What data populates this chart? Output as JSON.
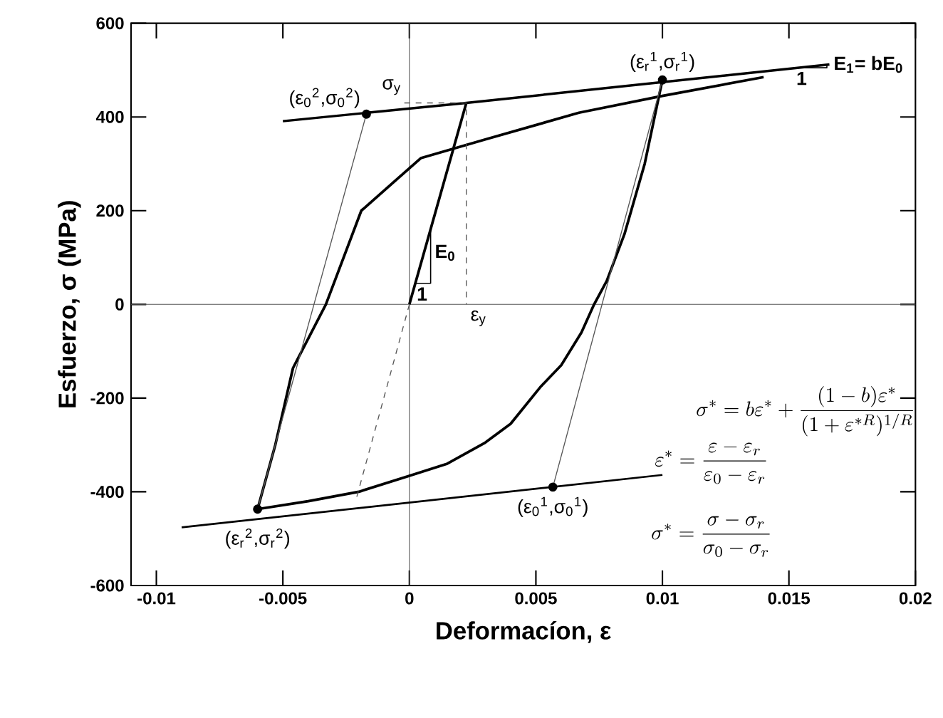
{
  "chart_data": {
    "type": "line",
    "xlabel": "Deformacíon, ε",
    "ylabel": "Esfuerzo,  σ  (MPa)",
    "xlim": [
      -0.011,
      0.02
    ],
    "ylim": [
      -600,
      600
    ],
    "xticks": [
      -0.01,
      -0.005,
      0,
      0.005,
      0.01,
      0.015,
      0.02
    ],
    "yticks": [
      -600,
      -400,
      -200,
      0,
      200,
      400,
      600
    ],
    "series": [
      {
        "color": "#555555",
        "x": [
          0,
          0
        ],
        "values": [
          -600,
          600
        ]
      },
      {
        "color": "#555555",
        "x": [
          -0.011,
          0.02
        ],
        "values": [
          0,
          0
        ]
      },
      {
        "color": "#000000",
        "x": [
          -0.005,
          0.00225,
          0.0166
        ],
        "values": [
          391,
          430,
          512
        ]
      },
      {
        "color": "#000000",
        "x": [
          0,
          0.00225
        ],
        "values": [
          0,
          430
        ]
      },
      {
        "color": "#000000",
        "x": [
          -0.006,
          -0.0053,
          -0.0046,
          -0.0033,
          -0.0019,
          0.00045,
          0.003,
          0.0067,
          0.01,
          0.014
        ],
        "values": [
          -437,
          -300,
          -136,
          0,
          200,
          312,
          352,
          409,
          445,
          485
        ]
      },
      {
        "color": "#000000",
        "x": [
          0.01,
          0.0093,
          0.0085,
          0.0078,
          0.0073,
          0.0068,
          0.006,
          0.0052,
          0.004,
          0.003,
          0.0015,
          0,
          -0.002,
          -0.004,
          -0.006
        ],
        "values": [
          479,
          300,
          150,
          50,
          0,
          -60,
          -130,
          -175,
          -255,
          -295,
          -340,
          -366,
          -400,
          -420,
          -437
        ]
      },
      {
        "color": "#000000",
        "x": [
          -0.009,
          0.01
        ],
        "values": [
          -476,
          -364
        ]
      },
      {
        "color": "#555555",
        "x": [
          0.01,
          0.00567
        ],
        "values": [
          479,
          -390
        ]
      },
      {
        "color": "#555555",
        "x": [
          -0.006,
          -0.0017
        ],
        "values": [
          -437,
          406
        ]
      },
      {
        "color": "#555555",
        "line_style": "dashed",
        "x": [
          0,
          -0.0021
        ],
        "values": [
          0,
          -415
        ]
      },
      {
        "color": "#555555",
        "line_style": "dashed",
        "x": [
          -0.0002,
          0.00225,
          0.00225
        ],
        "values": [
          430,
          430,
          0
        ]
      },
      {
        "color": "#000000",
        "x": [
          0.00024,
          0.00084,
          0.00084
        ],
        "values": [
          45,
          45,
          160
        ]
      },
      {
        "color": "#000000",
        "x": [
          0.0152,
          0.0165,
          0.0165
        ],
        "values": [
          505,
          505,
          512
        ]
      },
      {
        "type": "scatter",
        "marker": "circle",
        "color": "#000000",
        "x": [
          -0.0017,
          0.01,
          -0.006,
          0.00567
        ],
        "values": [
          406,
          479,
          -437,
          -390
        ]
      }
    ],
    "annotations": [
      {
        "text": "(ε$_{0}$$^{2}$,σ$_{0}$$^{2}$)",
        "x": -0.0017,
        "y": 406
      },
      {
        "text": "σ$_{y}$",
        "x": -0.0007,
        "y": 430
      },
      {
        "text": "(ε$_{r}$$^{1}$,σ$_{r}$$^{1}$)",
        "x": 0.01,
        "y": 479
      },
      {
        "text": "E$_{1}$= bE$_{0}$",
        "x": 0.0166,
        "y": 512
      },
      {
        "text": "1",
        "x": 0.0155,
        "y": 505
      },
      {
        "text": "E$_{0}$",
        "x": 0.00084,
        "y": 110
      },
      {
        "text": "1",
        "x": 0.0005,
        "y": 45
      },
      {
        "text": "ε$_{y}$",
        "x": 0.00225,
        "y": 0
      },
      {
        "text": "(ε$_{r}$$^{2}$,σ$_{r}$$^{2}$)",
        "x": -0.006,
        "y": -437
      },
      {
        "text": "(ε$_{0}$$^{1}$,σ$_{0}$$^{1}$)",
        "x": 0.00567,
        "y": -390
      },
      "\\sigma^{*}= b\\varepsilon^{*}+\\dfrac{(1-b)\\varepsilon^{*}}{(1+\\varepsilon^{*R})^{1/R}}",
      "\\varepsilon^{*}= \\dfrac{\\varepsilon-\\varepsilon_{r}}{\\varepsilon_{0}-\\varepsilon_{r}}",
      "\\sigma^{*}= \\dfrac{\\sigma-\\sigma_{r}}{\\sigma_{0}-\\sigma_{r}}"
    ]
  }
}
